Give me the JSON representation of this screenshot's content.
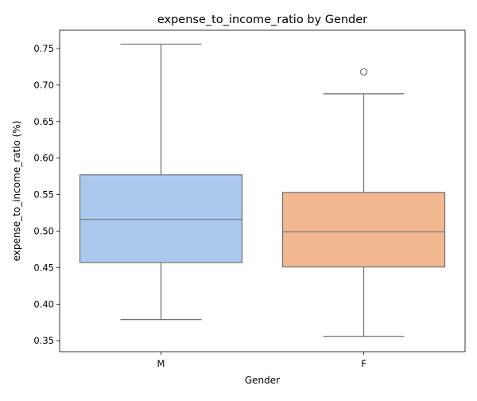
{
  "chart_data": {
    "type": "box",
    "title": "expense_to_income_ratio by Gender",
    "xlabel": "Gender",
    "ylabel": "expense_to_income_ratio (%)",
    "categories": [
      "M",
      "F"
    ],
    "ylim": [
      0.335,
      0.775
    ],
    "yticks": [
      0.35,
      0.4,
      0.45,
      0.5,
      0.55,
      0.6,
      0.65,
      0.7,
      0.75
    ],
    "ytick_labels": [
      "0.35",
      "0.40",
      "0.45",
      "0.50",
      "0.55",
      "0.60",
      "0.65",
      "0.70",
      "0.75"
    ],
    "grid": false,
    "boxes": [
      {
        "category": "M",
        "whisker_low": 0.379,
        "q1": 0.457,
        "median": 0.516,
        "q3": 0.577,
        "whisker_high": 0.756,
        "outliers": [],
        "color": "#abc9ef"
      },
      {
        "category": "F",
        "whisker_low": 0.356,
        "q1": 0.451,
        "median": 0.499,
        "q3": 0.553,
        "whisker_high": 0.688,
        "outliers": [
          0.718
        ],
        "color": "#f2b88f"
      }
    ],
    "line_color": "#6f6f6f"
  }
}
